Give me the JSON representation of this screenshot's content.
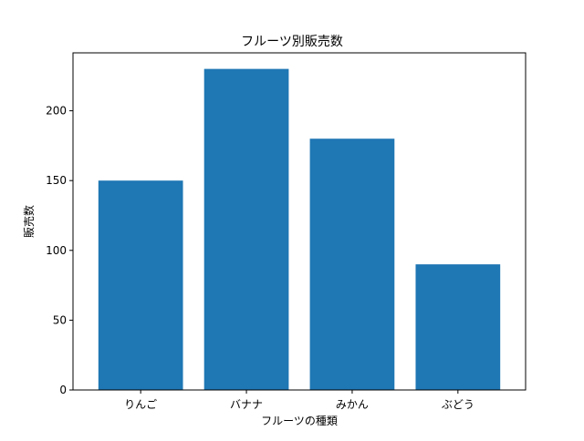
{
  "chart_data": {
    "type": "bar",
    "title": "フルーツ別販売数",
    "xlabel": "フルーツの種類",
    "ylabel": "販売数",
    "categories": [
      "りんご",
      "バナナ",
      "みかん",
      "ぶどう"
    ],
    "values": [
      150,
      230,
      180,
      90
    ],
    "ylim": [
      0,
      241.5
    ],
    "yticks": [
      0,
      50,
      100,
      150,
      200
    ],
    "bar_color": "#1f77b4",
    "grid": false,
    "legend": "none"
  }
}
